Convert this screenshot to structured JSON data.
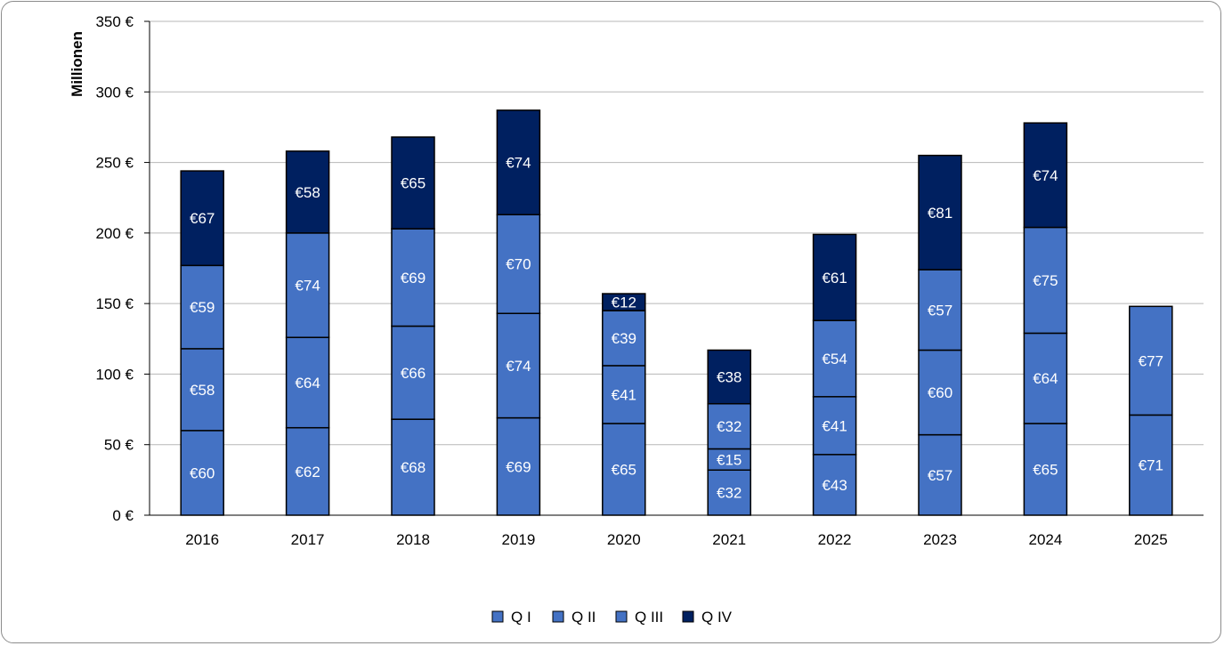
{
  "chart_data": {
    "type": "bar",
    "stacked": true,
    "ylabel": "Millionen",
    "ylim": [
      0,
      350
    ],
    "ytick_values": [
      0,
      50,
      100,
      150,
      200,
      250,
      300,
      350
    ],
    "ytick_labels": [
      "0 €",
      "50 €",
      "100 €",
      "150 €",
      "200 €",
      "250 €",
      "300 €",
      "350 €"
    ],
    "grid": true,
    "legend_position": "bottom",
    "categories": [
      "2016",
      "2017",
      "2018",
      "2019",
      "2020",
      "2021",
      "2022",
      "2023",
      "2024",
      "2025"
    ],
    "series": [
      {
        "name": "Q I",
        "color": "#4472C4",
        "values": [
          60,
          62,
          68,
          69,
          65,
          32,
          43,
          57,
          65,
          71
        ],
        "labels": [
          "€60",
          "€62",
          "€68",
          "€69",
          "€65",
          "€32",
          "€43",
          "€57",
          "€65",
          "€71"
        ]
      },
      {
        "name": "Q II",
        "color": "#4472C4",
        "values": [
          58,
          64,
          66,
          74,
          41,
          15,
          41,
          60,
          64,
          77
        ],
        "labels": [
          "€58",
          "€64",
          "€66",
          "€74",
          "€41",
          "€15",
          "€41",
          "€60",
          "€64",
          "€77"
        ]
      },
      {
        "name": "Q III",
        "color": "#4472C4",
        "values": [
          59,
          74,
          69,
          70,
          39,
          32,
          54,
          57,
          75,
          null
        ],
        "labels": [
          "€59",
          "€74",
          "€69",
          "€70",
          "€39",
          "€32",
          "€54",
          "€57",
          "€75",
          null
        ]
      },
      {
        "name": "Q IV",
        "color": "#002060",
        "values": [
          67,
          58,
          65,
          74,
          12,
          38,
          61,
          81,
          74,
          null
        ],
        "labels": [
          "€67",
          "€58",
          "€65",
          "€74",
          "€12",
          "€38",
          "€61",
          "€81",
          "€74",
          null
        ]
      }
    ]
  }
}
